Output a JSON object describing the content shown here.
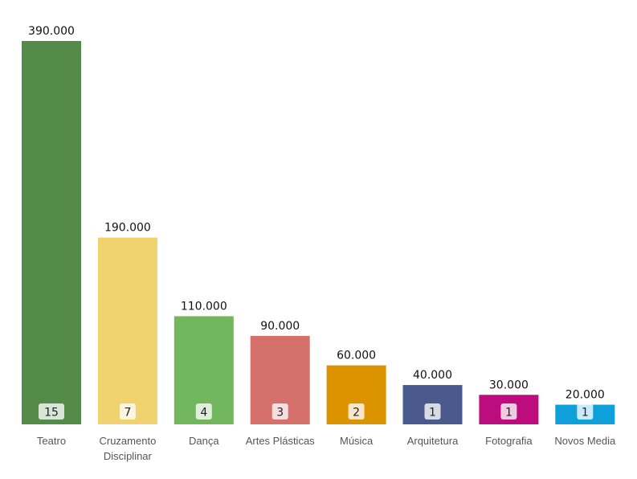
{
  "chart_data": {
    "type": "bar",
    "title": "",
    "xlabel": "",
    "ylabel": "",
    "ylim": [
      0,
      390000
    ],
    "grid": false,
    "legend": "none",
    "categories": [
      [
        "Teatro"
      ],
      [
        "Cruzamento",
        "Disciplinar"
      ],
      [
        "Dança"
      ],
      [
        "Artes Plásticas"
      ],
      [
        "Música"
      ],
      [
        "Arquitetura"
      ],
      [
        "Fotografia"
      ],
      [
        "Novos Media"
      ]
    ],
    "values": [
      390000,
      190000,
      110000,
      90000,
      60000,
      40000,
      30000,
      20000
    ],
    "value_labels": [
      "390.000",
      "190.000",
      "110.000",
      "90.000",
      "60.000",
      "40.000",
      "30.000",
      "20.000"
    ],
    "counts": [
      15,
      7,
      4,
      3,
      2,
      1,
      1,
      1
    ],
    "colors": [
      "#558b48",
      "#f0d26e",
      "#72b65e",
      "#d6706b",
      "#dc9300",
      "#4a5a8c",
      "#bc0c7d",
      "#0fa0dc"
    ]
  }
}
